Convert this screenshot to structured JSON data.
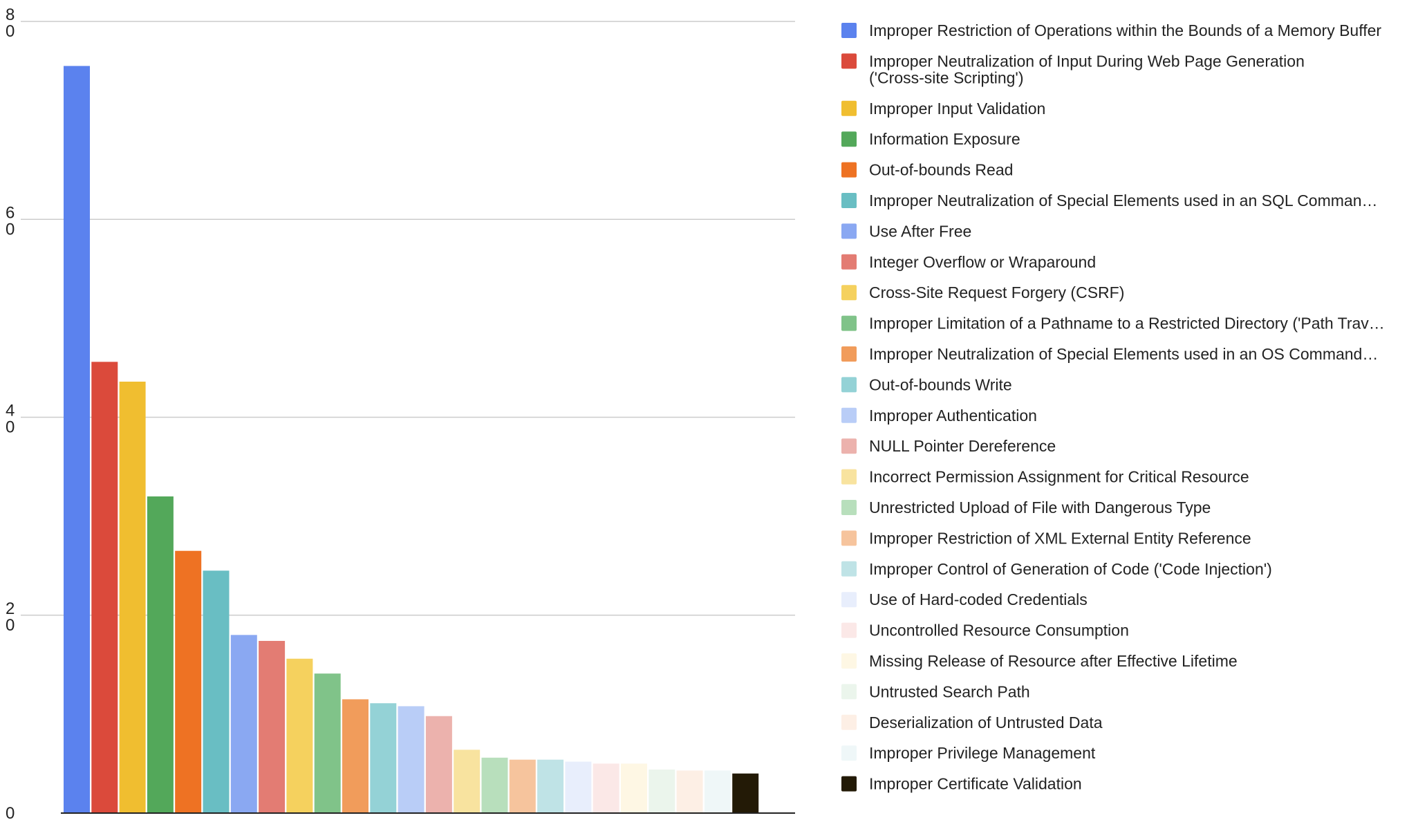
{
  "chart_data": {
    "type": "bar",
    "title": "",
    "xlabel": "",
    "ylabel": "",
    "ylim": [
      0,
      80
    ],
    "y_ticks": [
      {
        "value": 0,
        "lines": [
          "0"
        ]
      },
      {
        "value": 20,
        "lines": [
          "2",
          "0"
        ]
      },
      {
        "value": 40,
        "lines": [
          "4",
          "0"
        ]
      },
      {
        "value": 60,
        "lines": [
          "6",
          "0"
        ]
      },
      {
        "value": 80,
        "lines": [
          "8",
          "0"
        ]
      }
    ],
    "grid": true,
    "legend_position": "right",
    "series": [
      {
        "name": "Improper Restriction of Operations within the Bounds of a Memory Buffer",
        "legend_lines": [
          "Improper Restriction of Operations within the Bounds of a Memory Buffer"
        ],
        "value": 75.5,
        "color": "#5b82ee"
      },
      {
        "name": "Improper Neutralization of Input During Web Page Generation ('Cross-site Scripting')",
        "legend_lines": [
          "Improper Neutralization of Input During Web Page Generation",
          "('Cross-site Scripting')"
        ],
        "value": 45.6,
        "color": "#db4a3b"
      },
      {
        "name": "Improper Input Validation",
        "legend_lines": [
          "Improper Input Validation"
        ],
        "value": 43.6,
        "color": "#f0be30"
      },
      {
        "name": "Information Exposure",
        "legend_lines": [
          "Information Exposure"
        ],
        "value": 32.0,
        "color": "#53a85a"
      },
      {
        "name": "Out-of-bounds Read",
        "legend_lines": [
          "Out-of-bounds Read"
        ],
        "value": 26.5,
        "color": "#ee7223"
      },
      {
        "name": "Improper Neutralization of Special Elements used in an SQL Command",
        "legend_lines": [
          "Improper Neutralization of Special Elements used in an SQL Comman…"
        ],
        "value": 24.5,
        "color": "#69bec3"
      },
      {
        "name": "Use After Free",
        "legend_lines": [
          "Use After Free"
        ],
        "value": 18.0,
        "color": "#8aa8f2"
      },
      {
        "name": "Integer Overflow or Wraparound",
        "legend_lines": [
          "Integer Overflow or Wraparound"
        ],
        "value": 17.4,
        "color": "#e37c73"
      },
      {
        "name": "Cross-Site Request Forgery (CSRF)",
        "legend_lines": [
          "Cross-Site Request Forgery (CSRF)"
        ],
        "value": 15.6,
        "color": "#f5d15e"
      },
      {
        "name": "Improper Limitation of a Pathname to a Restricted Directory ('Path Traversal')",
        "legend_lines": [
          "Improper Limitation of a Pathname to a Restricted Directory ('Path Trav…"
        ],
        "value": 14.1,
        "color": "#80c389"
      },
      {
        "name": "Improper Neutralization of Special Elements used in an OS Command",
        "legend_lines": [
          "Improper Neutralization of Special Elements used in an OS Command…"
        ],
        "value": 11.5,
        "color": "#f19c5b"
      },
      {
        "name": "Out-of-bounds Write",
        "legend_lines": [
          "Out-of-bounds Write"
        ],
        "value": 11.1,
        "color": "#94d2d6"
      },
      {
        "name": "Improper Authentication",
        "legend_lines": [
          "Improper Authentication"
        ],
        "value": 10.8,
        "color": "#b9cdf7"
      },
      {
        "name": "NULL Pointer Dereference",
        "legend_lines": [
          "NULL Pointer Dereference"
        ],
        "value": 9.8,
        "color": "#ecb2ad"
      },
      {
        "name": "Incorrect Permission Assignment for Critical Resource",
        "legend_lines": [
          "Incorrect Permission Assignment for Critical Resource"
        ],
        "value": 6.4,
        "color": "#f8e39f"
      },
      {
        "name": "Unrestricted Upload of File with Dangerous Type",
        "legend_lines": [
          "Unrestricted Upload of File with Dangerous Type"
        ],
        "value": 5.6,
        "color": "#b8dfbc"
      },
      {
        "name": "Improper Restriction of XML External Entity Reference",
        "legend_lines": [
          "Improper Restriction of XML External Entity Reference"
        ],
        "value": 5.4,
        "color": "#f6c49d"
      },
      {
        "name": "Improper Control of Generation of Code ('Code Injection')",
        "legend_lines": [
          "Improper Control of Generation of Code ('Code Injection')"
        ],
        "value": 5.4,
        "color": "#bfe3e6"
      },
      {
        "name": "Use of Hard-coded Credentials",
        "legend_lines": [
          "Use of Hard-coded Credentials"
        ],
        "value": 5.2,
        "color": "#e8eefc"
      },
      {
        "name": "Uncontrolled Resource Consumption",
        "legend_lines": [
          "Uncontrolled Resource Consumption"
        ],
        "value": 5.0,
        "color": "#fbe8e7"
      },
      {
        "name": "Missing Release of Resource after Effective Lifetime",
        "legend_lines": [
          "Missing Release of Resource after Effective Lifetime"
        ],
        "value": 5.0,
        "color": "#fef7e4"
      },
      {
        "name": "Untrusted Search Path",
        "legend_lines": [
          "Untrusted Search Path"
        ],
        "value": 4.4,
        "color": "#ebf5ec"
      },
      {
        "name": "Deserialization of Untrusted Data",
        "legend_lines": [
          "Deserialization of Untrusted Data"
        ],
        "value": 4.3,
        "color": "#fdefe5"
      },
      {
        "name": "Improper Privilege Management",
        "legend_lines": [
          "Improper Privilege Management"
        ],
        "value": 4.3,
        "color": "#eff7f8"
      },
      {
        "name": "Improper Certificate Validation",
        "legend_lines": [
          "Improper Certificate Validation"
        ],
        "value": 4.0,
        "color": "#231a06"
      }
    ]
  }
}
